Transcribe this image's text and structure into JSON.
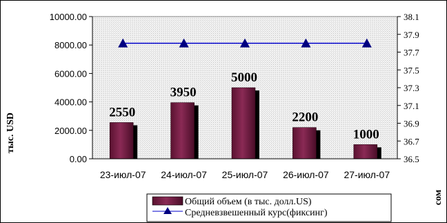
{
  "chart_data": {
    "type": "bar",
    "categories": [
      "23-июл-07",
      "24-июл-07",
      "25-июл-07",
      "26-июл-07",
      "27-июл-07"
    ],
    "series": [
      {
        "name": "Общий объем (в тыс. долл.US)",
        "type": "bar",
        "axis": "left",
        "values": [
          2550,
          3950,
          5000,
          2200,
          1000
        ],
        "color": "#6b1b3d",
        "data_labels": [
          "2550",
          "3950",
          "5000",
          "2200",
          "1000"
        ]
      },
      {
        "name": "Средневзвешенный курс(фиксинг)",
        "type": "line",
        "axis": "right",
        "values": [
          37.8,
          37.8,
          37.8,
          37.8,
          37.8
        ],
        "color": "#0000cc",
        "marker": "triangle"
      }
    ],
    "y_left": {
      "label": "тыс. USD",
      "ylim": [
        0,
        10000
      ],
      "ticks": [
        "0.00",
        "2000.00",
        "4000.00",
        "6000.00",
        "8000.00",
        "10000.00"
      ]
    },
    "y_right": {
      "label": "сом",
      "ylim": [
        36.5,
        38.1
      ],
      "ticks": [
        "36.5",
        "36.7",
        "36.9",
        "37.1",
        "37.3",
        "37.5",
        "37.7",
        "37.9",
        "38.1"
      ]
    },
    "legend_position": "bottom",
    "plot_background": "hatched light gray",
    "grid": false
  }
}
